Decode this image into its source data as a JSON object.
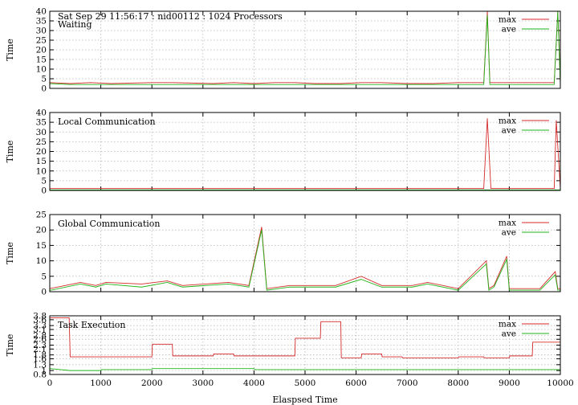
{
  "figure": {
    "header_text": "Sat Sep 29 11:56:17 : nid00112 : 1024 Processors",
    "xlabel": "Elaspsed Time"
  },
  "colors": {
    "max": "#d42a2a",
    "ave": "#22b51b"
  },
  "chart_data": [
    {
      "type": "line",
      "title": "Waiting",
      "ylabel": "Time",
      "xlim": [
        0,
        10000
      ],
      "ylim": [
        0,
        40
      ],
      "yticks": [
        0,
        5,
        10,
        15,
        20,
        25,
        30,
        35,
        40
      ],
      "xticks": [
        0,
        1000,
        2000,
        3000,
        4000,
        5000,
        6000,
        7000,
        8000,
        9000,
        10000
      ],
      "grid": true,
      "legend_position": "top-right",
      "series": [
        {
          "name": "max",
          "color": "#d42a2a",
          "baseline": 2.5,
          "x": [
            0,
            400,
            800,
            1200,
            2000,
            2400,
            3200,
            3600,
            4000,
            4400,
            4800,
            5200,
            5700,
            6100,
            6500,
            7000,
            7500,
            8000,
            8500,
            8570,
            8620,
            9000,
            9500,
            9880,
            9950,
            10000
          ],
          "y": [
            3,
            2.5,
            3,
            2.5,
            3,
            3,
            2.5,
            3,
            2.5,
            3,
            3,
            2.5,
            2.5,
            3,
            3,
            2.5,
            2.5,
            3,
            3,
            40,
            3,
            3,
            3,
            3,
            40,
            3
          ]
        },
        {
          "name": "ave",
          "color": "#22b51b",
          "baseline": 1.8,
          "x": [
            0,
            400,
            800,
            1200,
            2000,
            2400,
            3200,
            3600,
            4000,
            4400,
            4800,
            5200,
            5700,
            6100,
            6500,
            7000,
            7500,
            8000,
            8500,
            8570,
            8620,
            9000,
            9500,
            9880,
            9950,
            10000
          ],
          "y": [
            2.5,
            2,
            2,
            2,
            2,
            2,
            2,
            2,
            2,
            2,
            2,
            2,
            2,
            2,
            2,
            2,
            2,
            2,
            2,
            38,
            2,
            2,
            2,
            2,
            40,
            2
          ]
        }
      ]
    },
    {
      "type": "line",
      "title": "Local Communication",
      "ylabel": "Time",
      "xlim": [
        0,
        10000
      ],
      "ylim": [
        0,
        40
      ],
      "yticks": [
        0,
        5,
        10,
        15,
        20,
        25,
        30,
        35,
        40
      ],
      "xticks": [
        0,
        1000,
        2000,
        3000,
        4000,
        5000,
        6000,
        7000,
        8000,
        9000,
        10000
      ],
      "grid": true,
      "legend_position": "top-right",
      "series": [
        {
          "name": "max",
          "color": "#d42a2a",
          "x": [
            0,
            500,
            1000,
            1500,
            2000,
            2500,
            3000,
            3500,
            4000,
            4500,
            5000,
            5500,
            6000,
            6500,
            7000,
            7500,
            8000,
            8500,
            8570,
            8640,
            9000,
            9500,
            9880,
            9920,
            10000
          ],
          "y": [
            1,
            1,
            1,
            1,
            1,
            1,
            1,
            1,
            1,
            1,
            1,
            1,
            1,
            1,
            1,
            1,
            1,
            1,
            37,
            1,
            1,
            1,
            1,
            36,
            1
          ]
        },
        {
          "name": "ave",
          "color": "#22b51b",
          "x": [
            0,
            10000
          ],
          "y": [
            0.3,
            0.3
          ]
        }
      ]
    },
    {
      "type": "line",
      "title": "Global Communication",
      "ylabel": "Time",
      "xlim": [
        0,
        10000
      ],
      "ylim": [
        0,
        25
      ],
      "yticks": [
        0,
        5,
        10,
        15,
        20,
        25
      ],
      "xticks": [
        0,
        1000,
        2000,
        3000,
        4000,
        5000,
        6000,
        7000,
        8000,
        9000,
        10000
      ],
      "grid": true,
      "legend_position": "top-right",
      "series": [
        {
          "name": "max",
          "color": "#d42a2a",
          "x": [
            0,
            600,
            900,
            1100,
            1800,
            2300,
            2600,
            3500,
            3900,
            4150,
            4250,
            4700,
            5200,
            5600,
            6100,
            6500,
            7100,
            7400,
            8000,
            8550,
            8600,
            8700,
            8950,
            9000,
            9100,
            9600,
            9900,
            9950,
            10000
          ],
          "y": [
            1,
            3,
            2,
            3,
            2.5,
            3.5,
            2,
            3,
            2,
            21,
            1,
            2,
            2,
            2,
            5,
            2,
            2,
            3,
            1,
            10,
            1,
            2,
            11.5,
            1,
            1,
            1,
            6.5,
            1,
            1
          ]
        },
        {
          "name": "ave",
          "color": "#22b51b",
          "x": [
            0,
            600,
            900,
            1100,
            1800,
            2300,
            2600,
            3500,
            3900,
            4150,
            4250,
            4700,
            5200,
            5600,
            6100,
            6500,
            7100,
            7400,
            8000,
            8550,
            8600,
            8700,
            8950,
            9000,
            9100,
            9600,
            9900,
            9950,
            10000
          ],
          "y": [
            0.4,
            2.5,
            1.5,
            2.5,
            1.5,
            3,
            1.5,
            2.5,
            1.5,
            20,
            0.5,
            1.5,
            1.5,
            1.5,
            4,
            1.5,
            1.5,
            2.5,
            0.5,
            9,
            0.5,
            1.5,
            10.5,
            0.5,
            0.5,
            0.5,
            5.5,
            0.5,
            0.5
          ]
        }
      ]
    },
    {
      "type": "line",
      "title": "Task Execution",
      "ylabel": "Time",
      "xlim": [
        0,
        10000
      ],
      "ylim": [
        0.8,
        3.8
      ],
      "yticks": [
        0.8,
        1.0,
        1.3,
        1.6,
        1.8,
        2.1,
        2.3,
        2.6,
        2.8,
        3.1,
        3.3,
        3.6,
        3.8
      ],
      "xticks": [
        0,
        1000,
        2000,
        3000,
        4000,
        5000,
        6000,
        7000,
        8000,
        9000,
        10000
      ],
      "grid": true,
      "legend_position": "top-right",
      "series": [
        {
          "name": "max",
          "color": "#d42a2a",
          "x": [
            0,
            380,
            400,
            2000,
            2010,
            2400,
            2410,
            3200,
            3210,
            3600,
            3610,
            4800,
            4810,
            5300,
            5310,
            5700,
            5710,
            6100,
            6110,
            6500,
            6510,
            6900,
            6910,
            8000,
            8010,
            8500,
            8510,
            9000,
            9010,
            9450,
            9460,
            10000
          ],
          "y": [
            3.7,
            3.7,
            1.7,
            1.7,
            2.35,
            2.35,
            1.75,
            1.75,
            1.85,
            1.85,
            1.75,
            1.75,
            2.65,
            2.65,
            3.5,
            3.5,
            1.65,
            1.65,
            1.85,
            1.85,
            1.7,
            1.7,
            1.65,
            1.65,
            1.7,
            1.7,
            1.65,
            1.65,
            1.75,
            1.75,
            2.45,
            2.45
          ]
        },
        {
          "name": "ave",
          "color": "#22b51b",
          "x": [
            0,
            400,
            1000,
            1010,
            2000,
            2010,
            4000,
            4010,
            10000
          ],
          "y": [
            1.1,
            1.0,
            1.0,
            1.05,
            1.05,
            1.1,
            1.1,
            1.05,
            1.05
          ]
        }
      ]
    }
  ]
}
